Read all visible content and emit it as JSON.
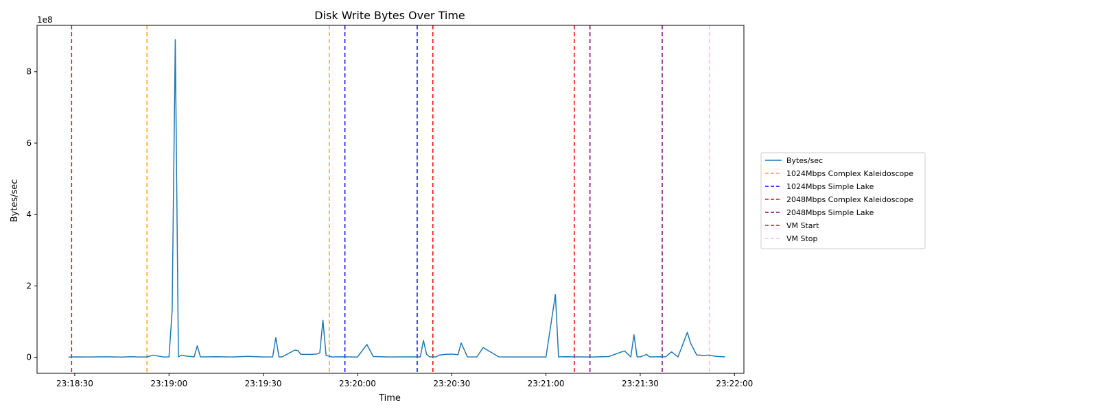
{
  "chart_data": {
    "type": "line",
    "title": "Disk Write Bytes Over Time",
    "xlabel": "Time",
    "ylabel": "Bytes/sec",
    "y_offset_label": "1e8",
    "y_scale_exponent": 8,
    "xlim": [
      "23:18:18",
      "23:22:03"
    ],
    "ylim": [
      -45000000,
      930000000
    ],
    "x_ticks": [
      "23:18:30",
      "23:19:00",
      "23:19:30",
      "23:20:00",
      "23:20:30",
      "23:21:00",
      "23:21:30",
      "23:22:00"
    ],
    "y_ticks": [
      0,
      2,
      4,
      6,
      8
    ],
    "grid": false,
    "legend_position": "center-right, outside plot",
    "series": [
      {
        "name": "Bytes/sec",
        "color": "#1f77b4",
        "x": [
          "23:18:28",
          "23:18:30",
          "23:18:35",
          "23:18:40",
          "23:18:45",
          "23:18:48",
          "23:18:50",
          "23:18:53",
          "23:18:55",
          "23:18:58",
          "23:18:59",
          "23:19:00",
          "23:19:01",
          "23:19:02",
          "23:19:03",
          "23:19:04",
          "23:19:05",
          "23:19:08",
          "23:19:09",
          "23:19:10",
          "23:19:12",
          "23:19:15",
          "23:19:20",
          "23:19:25",
          "23:19:30",
          "23:19:33",
          "23:19:34",
          "23:19:35",
          "23:19:36",
          "23:19:40",
          "23:19:41",
          "23:19:42",
          "23:19:45",
          "23:19:47",
          "23:19:48",
          "23:19:49",
          "23:19:50",
          "23:19:52",
          "23:19:55",
          "23:20:00",
          "23:20:03",
          "23:20:05",
          "23:20:10",
          "23:20:15",
          "23:20:20",
          "23:20:21",
          "23:20:22",
          "23:20:23",
          "23:20:25",
          "23:20:26",
          "23:20:28",
          "23:20:30",
          "23:20:31",
          "23:20:32",
          "23:20:33",
          "23:20:35",
          "23:20:38",
          "23:20:39",
          "23:20:40",
          "23:20:45",
          "23:20:50",
          "23:20:55",
          "23:21:00",
          "23:21:03",
          "23:21:04",
          "23:21:06",
          "23:21:10",
          "23:21:15",
          "23:21:20",
          "23:21:25",
          "23:21:27",
          "23:21:28",
          "23:21:29",
          "23:21:30",
          "23:21:32",
          "23:21:33",
          "23:21:34",
          "23:21:36",
          "23:21:38",
          "23:21:40",
          "23:21:42",
          "23:21:43",
          "23:21:45",
          "23:21:46",
          "23:21:48",
          "23:21:49",
          "23:21:50",
          "23:21:52",
          "23:21:53",
          "23:21:55",
          "23:21:57"
        ],
        "values": [
          500000,
          1000000,
          800000,
          1200000,
          700000,
          1500000,
          900000,
          800000,
          6000000,
          1000000,
          800000,
          1000000,
          130000000,
          890000000,
          1000000,
          6000000,
          4000000,
          1000000,
          32000000,
          1000000,
          1000000,
          1500000,
          800000,
          2500000,
          900000,
          1000000,
          55000000,
          1000000,
          1000000,
          20000000,
          19000000,
          8000000,
          8000000,
          9000000,
          12000000,
          104000000,
          5000000,
          800000,
          1200000,
          700000,
          36000000,
          2000000,
          800000,
          1000000,
          1000000,
          47000000,
          8000000,
          1000000,
          1000000,
          6000000,
          8000000,
          9000000,
          8000000,
          7000000,
          40000000,
          1000000,
          800000,
          14000000,
          27000000,
          1000000,
          800000,
          800000,
          800000,
          176000000,
          1000000,
          1500000,
          1000000,
          800000,
          2000000,
          18000000,
          1000000,
          63000000,
          1000000,
          1000000,
          8000000,
          1000000,
          1000000,
          1500000,
          1000000,
          15000000,
          1000000,
          23000000,
          70000000,
          40000000,
          6000000,
          6000000,
          5000000,
          6000000,
          4000000,
          2000000,
          1000000
        ]
      }
    ],
    "events": [
      {
        "name": "1024Mbps Complex Kaleidoscope",
        "color": "#ffa500",
        "times": [
          "23:18:53",
          "23:19:51"
        ]
      },
      {
        "name": "1024Mbps Simple Lake",
        "color": "#0000ff",
        "times": [
          "23:19:56",
          "23:20:19"
        ]
      },
      {
        "name": "2048Mbps Complex Kaleidoscope",
        "color": "#ff0000",
        "times": [
          "23:20:24",
          "23:21:09"
        ]
      },
      {
        "name": "2048Mbps Simple Lake",
        "color": "#800080",
        "times": [
          "23:21:14",
          "23:21:37"
        ]
      },
      {
        "name": "VM Start",
        "color": "#b22222",
        "times": [
          "23:18:29"
        ]
      },
      {
        "name": "VM Stop",
        "color": "#ffc0cb",
        "times": [
          "23:21:52"
        ]
      }
    ]
  }
}
